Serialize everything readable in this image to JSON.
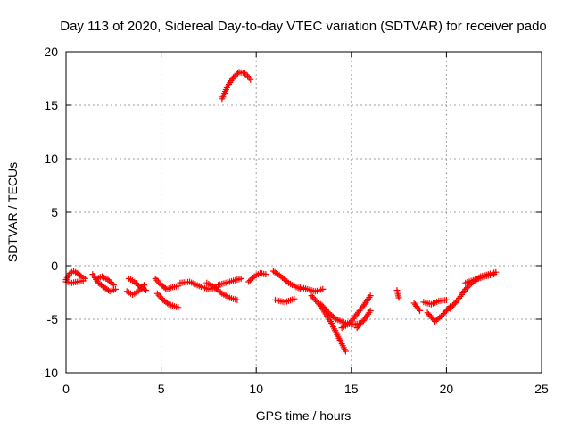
{
  "chart_data": {
    "type": "scatter",
    "title": "Day 113 of 2020, Sidereal Day-to-day VTEC variation (SDTVAR) for receiver pado",
    "xlabel": "GPS time / hours",
    "ylabel": "SDTVAR / TECUs",
    "xlim": [
      0,
      25
    ],
    "ylim": [
      -10,
      20
    ],
    "xticks": [
      "0",
      "5",
      "10",
      "15",
      "20",
      "25"
    ],
    "yticks": [
      "-10",
      "-5",
      "0",
      "5",
      "10",
      "15",
      "20"
    ],
    "grid": true,
    "marker": "+",
    "color": "#ff0000",
    "series": [
      {
        "name": "seg1",
        "x": [
          0.0,
          0.2,
          0.4,
          0.6,
          0.8,
          1.0
        ],
        "y": [
          -1.3,
          -0.7,
          -0.5,
          -0.7,
          -1.0,
          -1.2
        ]
      },
      {
        "name": "seg2",
        "x": [
          0.0,
          0.3,
          0.6,
          0.9
        ],
        "y": [
          -1.5,
          -1.6,
          -1.5,
          -1.4
        ]
      },
      {
        "name": "seg3",
        "x": [
          1.4,
          1.7,
          2.0,
          2.3,
          2.6
        ],
        "y": [
          -0.8,
          -1.6,
          -2.0,
          -2.4,
          -2.2
        ]
      },
      {
        "name": "seg4",
        "x": [
          1.6,
          1.9,
          2.2,
          2.5
        ],
        "y": [
          -1.2,
          -1.0,
          -1.3,
          -1.8
        ]
      },
      {
        "name": "seg5",
        "x": [
          3.3,
          3.6,
          3.9,
          4.2
        ],
        "y": [
          -1.2,
          -1.5,
          -2.0,
          -2.3
        ]
      },
      {
        "name": "seg6",
        "x": [
          3.2,
          3.5,
          3.8,
          4.1
        ],
        "y": [
          -2.4,
          -2.7,
          -2.4,
          -1.8
        ]
      },
      {
        "name": "seg7",
        "x": [
          4.7,
          5.0,
          5.3,
          5.6,
          5.9
        ],
        "y": [
          -1.2,
          -1.8,
          -2.2,
          -2.0,
          -1.9
        ]
      },
      {
        "name": "seg8",
        "x": [
          4.8,
          5.1,
          5.4,
          5.7,
          5.9
        ],
        "y": [
          -2.6,
          -3.2,
          -3.6,
          -3.8,
          -3.9
        ]
      },
      {
        "name": "seg9",
        "x": [
          6.0,
          6.5,
          7.0,
          7.5,
          8.0
        ],
        "y": [
          -1.6,
          -1.5,
          -1.9,
          -2.2,
          -2.0
        ]
      },
      {
        "name": "seg10",
        "x": [
          7.4,
          7.8,
          8.2,
          8.6,
          9.0
        ],
        "y": [
          -1.6,
          -2.0,
          -2.6,
          -3.0,
          -3.2
        ]
      },
      {
        "name": "seg11",
        "x": [
          8.0,
          8.4,
          8.8,
          9.2
        ],
        "y": [
          -1.8,
          -1.6,
          -1.4,
          -1.2
        ]
      },
      {
        "name": "seg12",
        "x": [
          9.6,
          9.9,
          10.2,
          10.5
        ],
        "y": [
          -1.5,
          -1.0,
          -0.7,
          -0.8
        ]
      },
      {
        "name": "seg13",
        "x": [
          8.2,
          8.5,
          8.8,
          9.1,
          9.4,
          9.7
        ],
        "y": [
          15.6,
          16.8,
          17.6,
          18.1,
          18.0,
          17.4
        ]
      },
      {
        "name": "seg14",
        "x": [
          10.9,
          11.3,
          11.7,
          12.1,
          12.4
        ],
        "y": [
          -0.5,
          -1.0,
          -1.6,
          -2.0,
          -2.2
        ]
      },
      {
        "name": "seg15",
        "x": [
          11.0,
          11.5,
          12.0
        ],
        "y": [
          -3.2,
          -3.4,
          -3.1
        ]
      },
      {
        "name": "seg16",
        "x": [
          12.3,
          12.7,
          13.1,
          13.5
        ],
        "y": [
          -2.0,
          -2.2,
          -2.4,
          -2.2
        ]
      },
      {
        "name": "seg17",
        "x": [
          12.9,
          13.4,
          13.9,
          14.3,
          14.7
        ],
        "y": [
          -2.8,
          -3.8,
          -5.2,
          -6.6,
          -8.0
        ]
      },
      {
        "name": "seg18",
        "x": [
          13.4,
          13.8,
          14.2,
          14.6,
          15.0,
          15.4
        ],
        "y": [
          -3.6,
          -4.4,
          -5.0,
          -5.3,
          -5.5,
          -5.4
        ]
      },
      {
        "name": "seg19",
        "x": [
          14.5,
          14.9,
          15.3,
          15.7,
          16.0
        ],
        "y": [
          -5.8,
          -5.4,
          -4.5,
          -3.6,
          -2.8
        ]
      },
      {
        "name": "seg20",
        "x": [
          15.3,
          15.7,
          16.0
        ],
        "y": [
          -5.8,
          -5.0,
          -4.2
        ]
      },
      {
        "name": "seg21",
        "x": [
          17.4,
          17.5
        ],
        "y": [
          -2.3,
          -3.0
        ]
      },
      {
        "name": "seg22",
        "x": [
          18.3,
          18.6
        ],
        "y": [
          -3.5,
          -4.2
        ]
      },
      {
        "name": "seg23",
        "x": [
          18.8,
          19.2,
          19.6,
          20.0
        ],
        "y": [
          -3.4,
          -3.6,
          -3.3,
          -3.2
        ]
      },
      {
        "name": "seg24",
        "x": [
          19.0,
          19.4,
          19.8,
          20.2
        ],
        "y": [
          -4.4,
          -5.2,
          -4.6,
          -3.8
        ]
      },
      {
        "name": "seg25",
        "x": [
          20.2,
          20.6,
          21.0,
          21.4,
          21.8,
          22.2,
          22.6
        ],
        "y": [
          -4.0,
          -3.2,
          -2.2,
          -1.5,
          -1.0,
          -0.8,
          -0.6
        ]
      },
      {
        "name": "seg26",
        "x": [
          21.0,
          21.5,
          22.0,
          22.5
        ],
        "y": [
          -1.6,
          -1.3,
          -1.0,
          -0.8
        ]
      }
    ]
  }
}
